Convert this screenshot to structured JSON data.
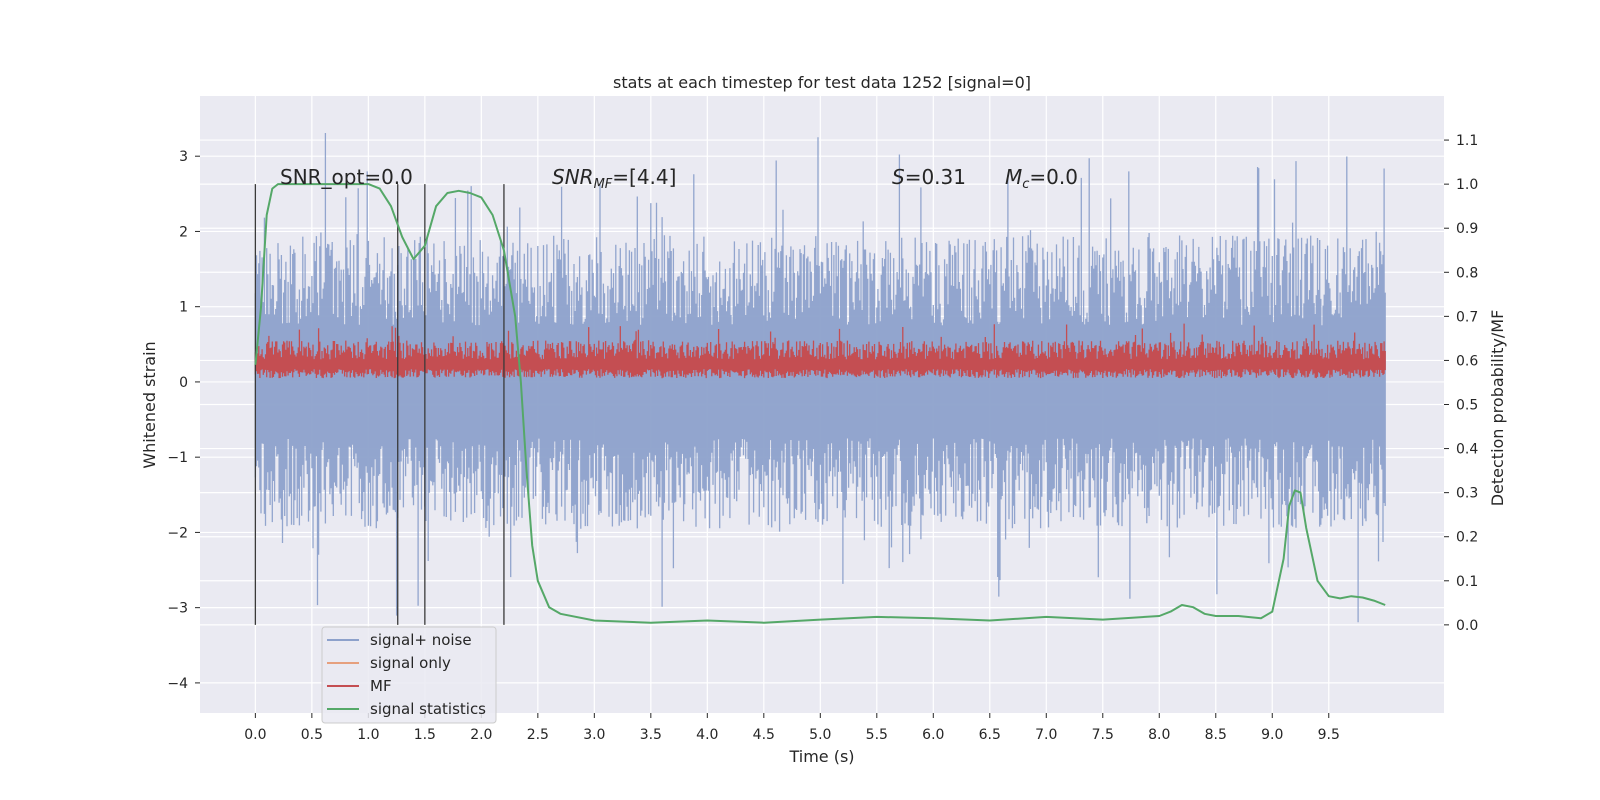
{
  "chart_data": {
    "type": "line",
    "title": "stats at each timestep for test data 1252 [signal=0]",
    "xlabel": "Time (s)",
    "ylabel": "Whitened strain",
    "y2label": "Detection probability/MF",
    "xlim": [
      -0.49,
      10.52
    ],
    "ylim": [
      -4.4,
      3.8
    ],
    "y2lim": [
      -0.2,
      1.2
    ],
    "xticks": [
      "0.0",
      "0.5",
      "1.0",
      "1.5",
      "2.0",
      "2.5",
      "3.0",
      "3.5",
      "4.0",
      "4.5",
      "5.0",
      "5.5",
      "6.0",
      "6.5",
      "7.0",
      "7.5",
      "8.0",
      "8.5",
      "9.0",
      "9.5"
    ],
    "yticks": [
      "3",
      "2",
      "1",
      "0",
      "−1",
      "−2",
      "−3",
      "−4"
    ],
    "y2ticks": [
      "1.1",
      "1.0",
      "0.9",
      "0.8",
      "0.7",
      "0.6",
      "0.5",
      "0.4",
      "0.3",
      "0.2",
      "0.1",
      "0.0"
    ],
    "grid": true,
    "legend_position": "lower-left",
    "colors": {
      "signal_noise": "#8da1cb",
      "signal_only": "#e6a07e",
      "mf": "#c44e52",
      "stats": "#55a868",
      "background": "#eaeaf2",
      "vline": "#3a3a3a"
    },
    "annotations": {
      "snr_opt": "SNR_opt=0.0",
      "snr_mf_base": "SNR",
      "snr_mf_sub": "MF",
      "snr_mf_rest": "=[4.4]",
      "s_var": "S",
      "s_val": "=0.31",
      "mc_var": "M",
      "mc_sub": "c",
      "mc_val": "=0.0"
    },
    "vertical_markers_s": [
      0.0,
      1.26,
      1.5,
      2.2
    ],
    "series": [
      {
        "name": "signal+ noise",
        "description": "whitened strain noise, amplitude envelope approx ±1.5 with peaks to 3.4 and -3.5",
        "x_range": [
          0.0,
          10.0
        ],
        "envelope_high": 1.5,
        "envelope_low": -1.5
      },
      {
        "name": "signal only",
        "values": []
      },
      {
        "name": "MF",
        "description": "matched-filter output between approx 0.05 and 0.8 on strain axis",
        "x_range": [
          0.0,
          10.0
        ],
        "envelope_low": 0.05,
        "envelope_high": 0.55
      },
      {
        "name": "signal statistics",
        "axis": "right",
        "x": [
          0.0,
          0.05,
          0.1,
          0.15,
          0.2,
          0.3,
          0.5,
          0.8,
          1.0,
          1.1,
          1.2,
          1.3,
          1.4,
          1.5,
          1.6,
          1.7,
          1.8,
          1.9,
          2.0,
          2.1,
          2.2,
          2.3,
          2.35,
          2.4,
          2.45,
          2.5,
          2.6,
          2.7,
          3.0,
          3.5,
          4.0,
          4.5,
          5.0,
          5.5,
          6.0,
          6.5,
          7.0,
          7.5,
          8.0,
          8.1,
          8.2,
          8.3,
          8.4,
          8.5,
          8.7,
          8.9,
          9.0,
          9.1,
          9.15,
          9.2,
          9.25,
          9.3,
          9.4,
          9.5,
          9.6,
          9.7,
          9.8,
          9.9,
          10.0
        ],
        "values": [
          0.59,
          0.72,
          0.93,
          0.99,
          1.0,
          1.0,
          1.0,
          1.0,
          1.0,
          0.99,
          0.95,
          0.88,
          0.83,
          0.86,
          0.95,
          0.98,
          0.985,
          0.98,
          0.97,
          0.93,
          0.85,
          0.7,
          0.55,
          0.35,
          0.18,
          0.1,
          0.04,
          0.025,
          0.01,
          0.005,
          0.01,
          0.005,
          0.012,
          0.018,
          0.015,
          0.01,
          0.018,
          0.012,
          0.02,
          0.03,
          0.045,
          0.04,
          0.025,
          0.02,
          0.02,
          0.015,
          0.03,
          0.15,
          0.27,
          0.305,
          0.3,
          0.22,
          0.1,
          0.065,
          0.06,
          0.065,
          0.062,
          0.055,
          0.045
        ]
      }
    ]
  }
}
